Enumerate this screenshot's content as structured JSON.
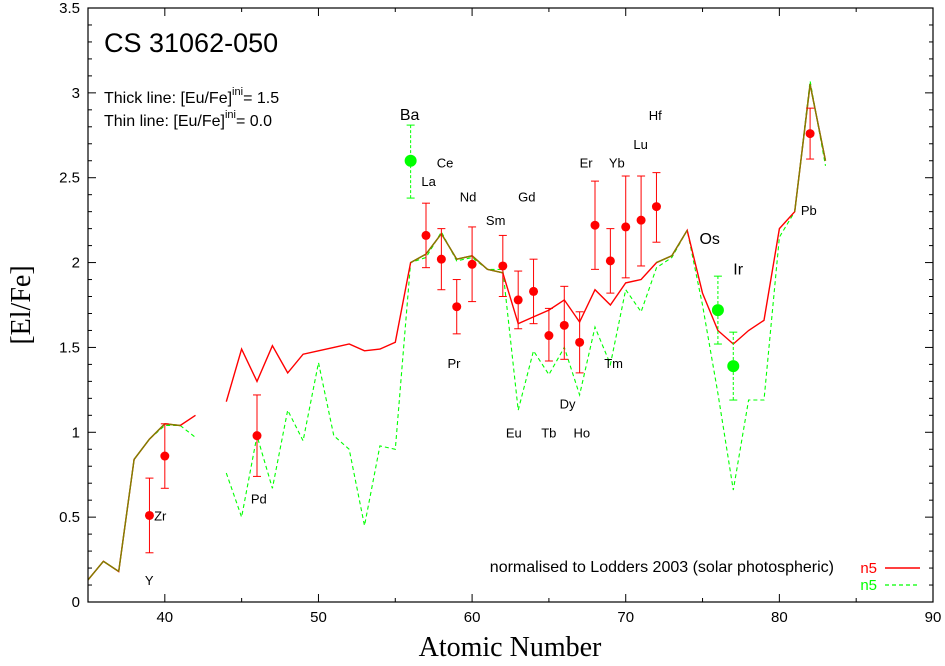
{
  "chart_data": {
    "type": "line",
    "title": "CS 31062-050",
    "xlabel": "Atomic Number",
    "ylabel": "[El/Fe]",
    "xlim": [
      35,
      90
    ],
    "ylim": [
      0,
      3.5
    ],
    "xticks": [
      "40",
      "50",
      "60",
      "70",
      "80",
      "90"
    ],
    "yticks": [
      "0",
      "0.5",
      "1",
      "1.5",
      "2",
      "2.5",
      "3",
      "3.5"
    ],
    "annotation_line1": "Thick line:  [Eu/Fe]",
    "annotation_line1_sup": "ini",
    "annotation_line1_value": "= 1.5",
    "annotation_line2": "Thin line:   [Eu/Fe]",
    "annotation_line2_sup": "ini",
    "annotation_line2_value": "= 0.0",
    "normalisation_note": "normalised to Lodders 2003 (solar photospheric)",
    "colors": {
      "red": "#ff0000",
      "green": "#00ff00",
      "olive": "#808000"
    },
    "series": [
      {
        "name": "n5",
        "style": "solid",
        "color": "#ff0000",
        "segments": [
          [
            [
              35,
              0.13
            ],
            [
              36,
              0.24
            ],
            [
              37,
              0.18
            ],
            [
              38,
              0.84
            ],
            [
              39,
              0.96
            ],
            [
              40,
              1.05
            ],
            [
              41,
              1.04
            ],
            [
              42,
              1.1
            ]
          ],
          [
            [
              44,
              1.18
            ],
            [
              45,
              1.49
            ],
            [
              46,
              1.3
            ],
            [
              47,
              1.51
            ],
            [
              48,
              1.35
            ],
            [
              49,
              1.46
            ],
            [
              50,
              1.48
            ],
            [
              51,
              1.5
            ],
            [
              52,
              1.52
            ],
            [
              53,
              1.48
            ],
            [
              54,
              1.49
            ],
            [
              55,
              1.53
            ],
            [
              56,
              2.0
            ],
            [
              57,
              2.05
            ],
            [
              58,
              2.17
            ],
            [
              59,
              2.02
            ],
            [
              60,
              2.04
            ],
            [
              61,
              1.96
            ],
            [
              62,
              1.94
            ],
            [
              63,
              1.64
            ],
            [
              64,
              1.68
            ],
            [
              65,
              1.72
            ],
            [
              66,
              1.78
            ],
            [
              67,
              1.65
            ],
            [
              68,
              1.84
            ],
            [
              69,
              1.75
            ],
            [
              70,
              1.88
            ],
            [
              71,
              1.9
            ],
            [
              72,
              2.0
            ],
            [
              73,
              2.04
            ],
            [
              74,
              2.19
            ],
            [
              75,
              1.82
            ],
            [
              76,
              1.6
            ],
            [
              77,
              1.52
            ],
            [
              78,
              1.6
            ],
            [
              79,
              1.66
            ],
            [
              80,
              2.2
            ],
            [
              81,
              2.3
            ],
            [
              82,
              3.05
            ],
            [
              83,
              2.6
            ]
          ]
        ]
      },
      {
        "name": "n5",
        "style": "dashed",
        "color": "#00ff00",
        "segments": [
          [
            [
              35,
              0.13
            ],
            [
              36,
              0.24
            ],
            [
              37,
              0.18
            ],
            [
              38,
              0.84
            ],
            [
              39,
              0.96
            ],
            [
              40,
              1.04
            ],
            [
              41,
              1.04
            ],
            [
              42,
              0.97
            ]
          ],
          [
            [
              44,
              0.76
            ],
            [
              45,
              0.5
            ],
            [
              46,
              0.98
            ],
            [
              47,
              0.67
            ],
            [
              48,
              1.13
            ],
            [
              49,
              0.95
            ],
            [
              50,
              1.41
            ],
            [
              51,
              0.98
            ],
            [
              52,
              0.9
            ],
            [
              53,
              0.45
            ],
            [
              54,
              0.92
            ],
            [
              55,
              0.9
            ],
            [
              56,
              2.0
            ],
            [
              57,
              2.03
            ],
            [
              58,
              2.18
            ],
            [
              59,
              2.01
            ],
            [
              60,
              2.03
            ],
            [
              61,
              1.96
            ],
            [
              62,
              1.96
            ],
            [
              63,
              1.13
            ],
            [
              64,
              1.48
            ],
            [
              65,
              1.34
            ],
            [
              66,
              1.5
            ],
            [
              67,
              1.22
            ],
            [
              68,
              1.62
            ],
            [
              69,
              1.4
            ],
            [
              70,
              1.84
            ],
            [
              71,
              1.71
            ],
            [
              72,
              1.97
            ],
            [
              73,
              2.03
            ],
            [
              74,
              2.19
            ],
            [
              75,
              1.75
            ],
            [
              76,
              1.23
            ],
            [
              77,
              0.66
            ],
            [
              78,
              1.19
            ],
            [
              79,
              1.19
            ],
            [
              80,
              2.15
            ],
            [
              81,
              2.3
            ],
            [
              82,
              3.07
            ],
            [
              83,
              2.57
            ]
          ]
        ]
      }
    ],
    "observations": [
      {
        "z": 39,
        "y": 0.51,
        "lo": 0.29,
        "hi": 0.73,
        "color": "#ff0000",
        "type": "red"
      },
      {
        "z": 40,
        "y": 0.86,
        "lo": 0.67,
        "hi": 1.05,
        "color": "#ff0000",
        "type": "red"
      },
      {
        "z": 46,
        "y": 0.98,
        "lo": 0.74,
        "hi": 1.22,
        "color": "#ff0000",
        "type": "red"
      },
      {
        "z": 56,
        "y": 2.6,
        "lo": 2.38,
        "hi": 2.81,
        "color": "#00ff00",
        "type": "green"
      },
      {
        "z": 57,
        "y": 2.16,
        "lo": 1.97,
        "hi": 2.35,
        "color": "#ff0000",
        "type": "red"
      },
      {
        "z": 58,
        "y": 2.02,
        "lo": 1.84,
        "hi": 2.2,
        "color": "#ff0000",
        "type": "red"
      },
      {
        "z": 59,
        "y": 1.74,
        "lo": 1.58,
        "hi": 1.9,
        "color": "#ff0000",
        "type": "red"
      },
      {
        "z": 60,
        "y": 1.99,
        "lo": 1.77,
        "hi": 2.21,
        "color": "#ff0000",
        "type": "red"
      },
      {
        "z": 62,
        "y": 1.98,
        "lo": 1.8,
        "hi": 2.16,
        "color": "#ff0000",
        "type": "red"
      },
      {
        "z": 63,
        "y": 1.78,
        "lo": 1.61,
        "hi": 1.95,
        "color": "#ff0000",
        "type": "red"
      },
      {
        "z": 64,
        "y": 1.83,
        "lo": 1.64,
        "hi": 2.02,
        "color": "#ff0000",
        "type": "red"
      },
      {
        "z": 65,
        "y": 1.57,
        "lo": 1.42,
        "hi": 1.73,
        "color": "#ff0000",
        "type": "red"
      },
      {
        "z": 66,
        "y": 1.63,
        "lo": 1.43,
        "hi": 1.86,
        "color": "#ff0000",
        "type": "red"
      },
      {
        "z": 67,
        "y": 1.53,
        "lo": 1.35,
        "hi": 1.71,
        "color": "#ff0000",
        "type": "red"
      },
      {
        "z": 68,
        "y": 2.22,
        "lo": 1.96,
        "hi": 2.48,
        "color": "#ff0000",
        "type": "red"
      },
      {
        "z": 69,
        "y": 2.01,
        "lo": 1.82,
        "hi": 2.2,
        "color": "#ff0000",
        "type": "red"
      },
      {
        "z": 70,
        "y": 2.21,
        "lo": 1.91,
        "hi": 2.51,
        "color": "#ff0000",
        "type": "red"
      },
      {
        "z": 71,
        "y": 2.25,
        "lo": 1.98,
        "hi": 2.51,
        "color": "#ff0000",
        "type": "red"
      },
      {
        "z": 72,
        "y": 2.33,
        "lo": 2.12,
        "hi": 2.53,
        "color": "#ff0000",
        "type": "red"
      },
      {
        "z": 76,
        "y": 1.72,
        "lo": 1.52,
        "hi": 1.92,
        "color": "#00ff00",
        "type": "green"
      },
      {
        "z": 77,
        "y": 1.39,
        "lo": 1.19,
        "hi": 1.59,
        "color": "#00ff00",
        "type": "green"
      },
      {
        "z": 82,
        "y": 2.76,
        "lo": 2.61,
        "hi": 2.91,
        "color": "#ff0000",
        "type": "red"
      }
    ],
    "element_labels": [
      {
        "text": "Y",
        "z": 38.7,
        "y": 0.1,
        "size": "small"
      },
      {
        "text": "Zr",
        "z": 39.3,
        "y": 0.48,
        "size": "small"
      },
      {
        "text": "Pd",
        "z": 45.6,
        "y": 0.58,
        "size": "small"
      },
      {
        "text": "Ba",
        "z": 55.3,
        "y": 2.84,
        "size": "big"
      },
      {
        "text": "La",
        "z": 56.7,
        "y": 2.45,
        "size": "small"
      },
      {
        "text": "Ce",
        "z": 57.7,
        "y": 2.56,
        "size": "small"
      },
      {
        "text": "Pr",
        "z": 58.4,
        "y": 1.38,
        "size": "small"
      },
      {
        "text": "Nd",
        "z": 59.2,
        "y": 2.36,
        "size": "small"
      },
      {
        "text": "Sm",
        "z": 60.9,
        "y": 2.22,
        "size": "small"
      },
      {
        "text": "Gd",
        "z": 63.0,
        "y": 2.36,
        "size": "small"
      },
      {
        "text": "Eu",
        "z": 62.2,
        "y": 0.97,
        "size": "small"
      },
      {
        "text": "Tb",
        "z": 64.5,
        "y": 0.97,
        "size": "small"
      },
      {
        "text": "Dy",
        "z": 65.7,
        "y": 1.14,
        "size": "small"
      },
      {
        "text": "Ho",
        "z": 66.6,
        "y": 0.97,
        "size": "small"
      },
      {
        "text": "Tm",
        "z": 68.6,
        "y": 1.38,
        "size": "small"
      },
      {
        "text": "Er",
        "z": 67.0,
        "y": 2.56,
        "size": "small"
      },
      {
        "text": "Yb",
        "z": 68.9,
        "y": 2.56,
        "size": "small"
      },
      {
        "text": "Lu",
        "z": 70.5,
        "y": 2.67,
        "size": "small"
      },
      {
        "text": "Hf",
        "z": 71.5,
        "y": 2.84,
        "size": "small"
      },
      {
        "text": "Os",
        "z": 74.8,
        "y": 2.11,
        "size": "big"
      },
      {
        "text": "Ir",
        "z": 77.0,
        "y": 1.93,
        "size": "big"
      },
      {
        "text": "Pb",
        "z": 81.4,
        "y": 2.28,
        "size": "small"
      }
    ],
    "legend": {
      "placement": "bottom-right",
      "entries": [
        {
          "label": "n5",
          "color": "#ff0000",
          "style": "solid"
        },
        {
          "label": "n5",
          "color": "#00ff00",
          "style": "dashed"
        }
      ]
    },
    "grid": false
  }
}
